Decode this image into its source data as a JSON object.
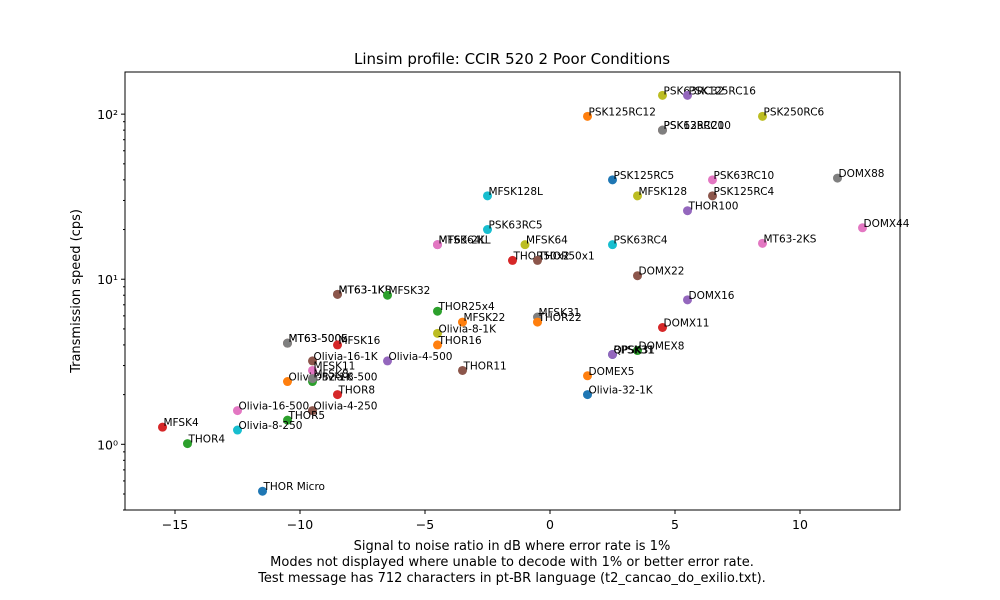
{
  "chart_data": {
    "type": "scatter",
    "title": "Linsim profile: CCIR 520 2 Poor Conditions",
    "xlabel_lines": [
      "Signal to noise ratio in dB where error rate is 1%",
      "Modes not displayed where unable to decode with 1% or better error rate.",
      "Test message has 712 characters in pt-BR language (t2_cancao_do_exilio.txt)."
    ],
    "ylabel": "Transmission speed (cps)",
    "xlim": [
      -17,
      14
    ],
    "ylim": [
      0.4,
      180
    ],
    "y_scale": "log",
    "x_ticks": [
      -15,
      -10,
      -5,
      0,
      5,
      10
    ],
    "x_tick_labels": [
      "−15",
      "−10",
      "−5",
      "0",
      "5",
      "10"
    ],
    "y_ticks": [
      1,
      10,
      100
    ],
    "y_tick_labels": [
      "10⁰",
      "10¹",
      "10²"
    ],
    "grid": false,
    "series": [
      {
        "label": "PSK63RC32",
        "x": 4.5,
        "y": 130,
        "color": "#bcbd22"
      },
      {
        "label": "PSK125RC16",
        "x": 5.5,
        "y": 130,
        "color": "#9467bd"
      },
      {
        "label": "PSK125RC12",
        "x": 1.5,
        "y": 97,
        "color": "#ff7f0e"
      },
      {
        "label": "PSK250RC6",
        "x": 8.5,
        "y": 97,
        "color": "#bcbd22"
      },
      {
        "label": "PSK63RC20",
        "x": 4.5,
        "y": 80,
        "color": "#8c564b"
      },
      {
        "label": "PSK125RC10",
        "x": 4.5,
        "y": 80,
        "color": "#7f7f7f"
      },
      {
        "label": "PSK125RC5",
        "x": 2.5,
        "y": 40,
        "color": "#1f77b4"
      },
      {
        "label": "PSK63RC10",
        "x": 6.5,
        "y": 40,
        "color": "#e377c2"
      },
      {
        "label": "DOMX88",
        "x": 11.5,
        "y": 41,
        "color": "#7f7f7f"
      },
      {
        "label": "MFSK128L",
        "x": -2.5,
        "y": 32,
        "color": "#17becf"
      },
      {
        "label": "MFSK128",
        "x": 3.5,
        "y": 32,
        "color": "#bcbd22"
      },
      {
        "label": "PSK125RC4",
        "x": 6.5,
        "y": 32,
        "color": "#8c564b"
      },
      {
        "label": "THOR100",
        "x": 5.5,
        "y": 26,
        "color": "#9467bd"
      },
      {
        "label": "DOMX44",
        "x": 12.5,
        "y": 20.5,
        "color": "#e377c2"
      },
      {
        "label": "PSK63RC5",
        "x": -2.5,
        "y": 20,
        "color": "#17becf"
      },
      {
        "label": "MFSK64L",
        "x": -4.5,
        "y": 16.2,
        "color": "#9467bd"
      },
      {
        "label": "MFSK64",
        "x": -1,
        "y": 16.2,
        "color": "#bcbd22"
      },
      {
        "label": "PSK63RC4",
        "x": 2.5,
        "y": 16.2,
        "color": "#17becf"
      },
      {
        "label": "MT63-2KS",
        "x": 8.5,
        "y": 16.5,
        "color": "#e377c2"
      },
      {
        "label": "MT63-2KL",
        "x": -4.5,
        "y": 16.2,
        "color": "#e377c2"
      },
      {
        "label": "THOR50x2",
        "x": -1.5,
        "y": 13,
        "color": "#d62728"
      },
      {
        "label": "THOR50x1",
        "x": -0.5,
        "y": 13,
        "color": "#8c564b"
      },
      {
        "label": "DOMX22",
        "x": 3.5,
        "y": 10.5,
        "color": "#8c564b"
      },
      {
        "label": "MT63-1KL",
        "x": -8.5,
        "y": 8.1,
        "color": "#7f7f7f"
      },
      {
        "label": "MT63-1KS",
        "x": -8.5,
        "y": 8.1,
        "color": "#8c564b"
      },
      {
        "label": "MFSK32",
        "x": -6.5,
        "y": 8.0,
        "color": "#2ca02c"
      },
      {
        "label": "DOMX16",
        "x": 5.5,
        "y": 7.5,
        "color": "#9467bd"
      },
      {
        "label": "THOR25x4",
        "x": -4.5,
        "y": 6.4,
        "color": "#2ca02c"
      },
      {
        "label": "MFSK31",
        "x": -0.5,
        "y": 5.9,
        "color": "#7f7f7f"
      },
      {
        "label": "MFSK22",
        "x": -3.5,
        "y": 5.5,
        "color": "#ff7f0e"
      },
      {
        "label": "THOR22",
        "x": -0.5,
        "y": 5.5,
        "color": "#ff7f0e"
      },
      {
        "label": "DOMX11",
        "x": 4.5,
        "y": 5.1,
        "color": "#d62728"
      },
      {
        "label": "Olivia-8-1K",
        "x": -4.5,
        "y": 4.7,
        "color": "#bcbd22"
      },
      {
        "label": "MT63-500L",
        "x": -10.5,
        "y": 4.1,
        "color": "#8c564b"
      },
      {
        "label": "MT63-500S",
        "x": -10.5,
        "y": 4.1,
        "color": "#7f7f7f"
      },
      {
        "label": "MFSK16",
        "x": -8.5,
        "y": 4.0,
        "color": "#d62728"
      },
      {
        "label": "THOR16",
        "x": -4.5,
        "y": 4.0,
        "color": "#ff7f0e"
      },
      {
        "label": "DOMEX8",
        "x": 3.5,
        "y": 3.7,
        "color": "#2ca02c"
      },
      {
        "label": "BPSK31",
        "x": 2.5,
        "y": 3.5,
        "color": "#1f77b4"
      },
      {
        "label": "QPSK31",
        "x": 2.5,
        "y": 3.5,
        "color": "#9467bd"
      },
      {
        "label": "Olivia-16-1K",
        "x": -9.5,
        "y": 3.2,
        "color": "#8c564b"
      },
      {
        "label": "Olivia-4-500",
        "x": -6.5,
        "y": 3.2,
        "color": "#9467bd"
      },
      {
        "label": "MFSK11",
        "x": -9.5,
        "y": 2.8,
        "color": "#e377c2"
      },
      {
        "label": "THOR11",
        "x": -3.5,
        "y": 2.8,
        "color": "#8c564b"
      },
      {
        "label": "DOMEX5",
        "x": 1.5,
        "y": 2.6,
        "color": "#ff7f0e"
      },
      {
        "label": "Olivia-32-1K",
        "x": -10.5,
        "y": 2.4,
        "color": "#ff7f0e"
      },
      {
        "label": "Olivia-8-500",
        "x": -9.5,
        "y": 2.4,
        "color": "#2ca02c"
      },
      {
        "label": "MFSK8",
        "x": -9.5,
        "y": 2.5,
        "color": "#7f7f7f"
      },
      {
        "label": "THOR8",
        "x": -8.5,
        "y": 2.0,
        "color": "#d62728"
      },
      {
        "label": "Olivia-32-1K",
        "x": 1.5,
        "y": 2.0,
        "color": "#1f77b4"
      },
      {
        "label": "Olivia-16-500",
        "x": -12.5,
        "y": 1.6,
        "color": "#e377c2"
      },
      {
        "label": "Olivia-4-250",
        "x": -9.5,
        "y": 1.6,
        "color": "#8c564b"
      },
      {
        "label": "THOR5",
        "x": -10.5,
        "y": 1.4,
        "color": "#2ca02c"
      },
      {
        "label": "MFSK4",
        "x": -15.5,
        "y": 1.27,
        "color": "#d62728"
      },
      {
        "label": "Olivia-8-250",
        "x": -12.5,
        "y": 1.22,
        "color": "#17becf"
      },
      {
        "label": "THOR4",
        "x": -14.5,
        "y": 1.01,
        "color": "#2ca02c"
      },
      {
        "label": "THOR Micro",
        "x": -11.5,
        "y": 0.52,
        "color": "#1f77b4"
      }
    ]
  }
}
